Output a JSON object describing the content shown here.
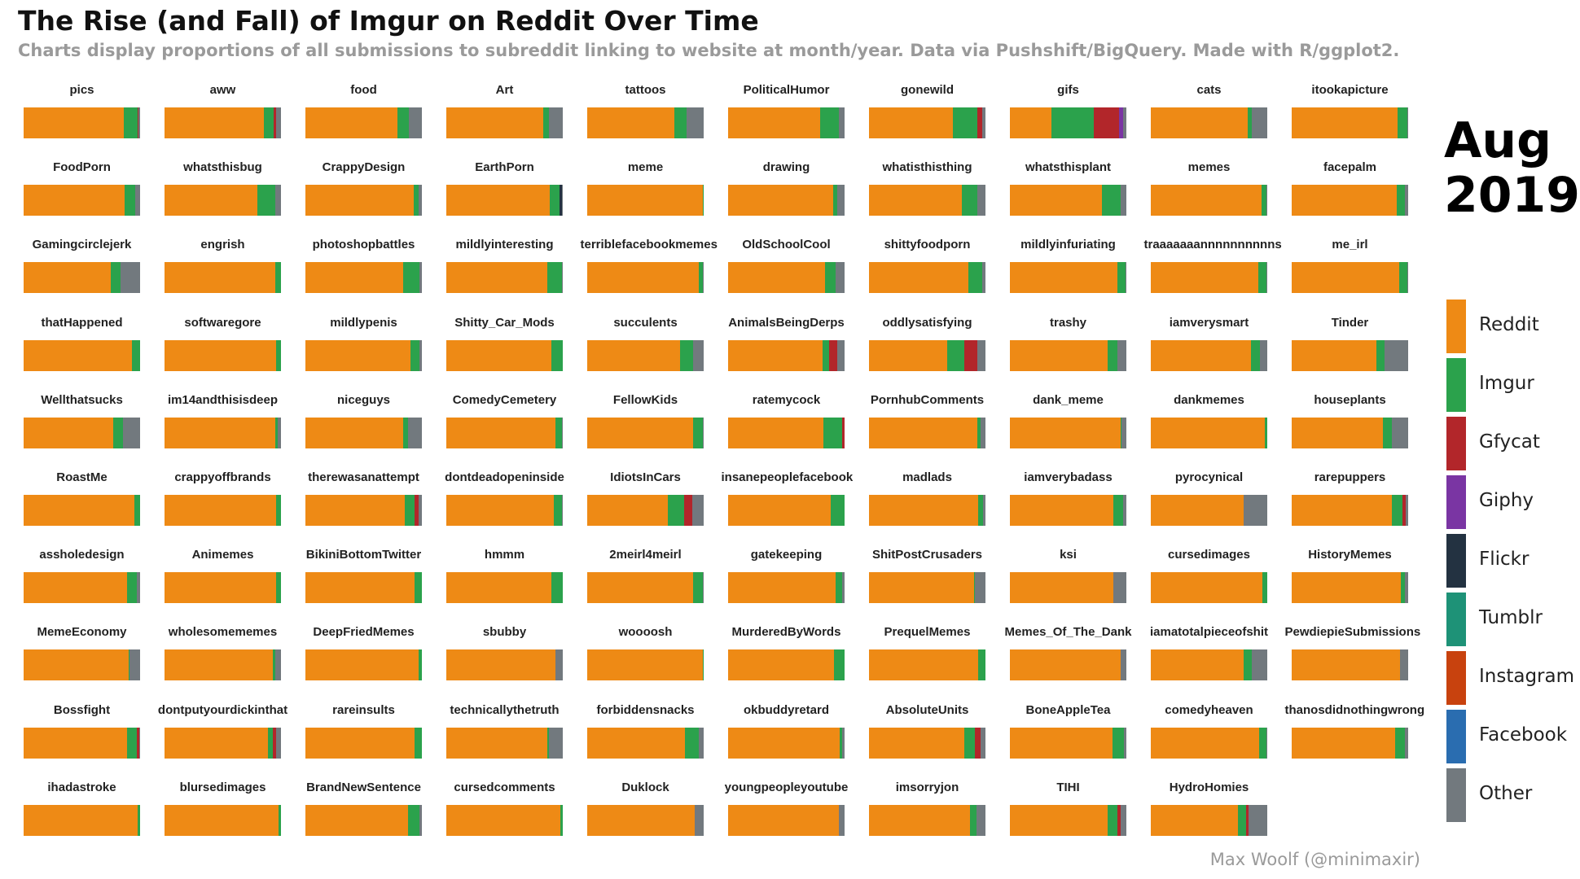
{
  "title": "The Rise (and Fall) of Imgur on Reddit Over Time",
  "subtitle": "Charts display proportions of all submissions to subreddit linking to website at month/year. Data via Pushshift/BigQuery. Made with R/ggplot2.",
  "date": {
    "month": "Aug",
    "year": "2019"
  },
  "caption": "Max Woolf (@minimaxir)",
  "colors": {
    "Reddit": "#EE8A15",
    "Imgur": "#2BA24C",
    "Gfycat": "#B2262A",
    "Giphy": "#7A35A3",
    "Flickr": "#233241",
    "Tumblr": "#1E9277",
    "Instagram": "#C8420E",
    "Facebook": "#2A6DB0",
    "Other": "#72797E"
  },
  "legend": [
    "Reddit",
    "Imgur",
    "Gfycat",
    "Giphy",
    "Flickr",
    "Tumblr",
    "Instagram",
    "Facebook",
    "Other"
  ],
  "chart_data": {
    "type": "bar",
    "stacked": true,
    "orientation": "horizontal",
    "value_units": "proportion of submissions",
    "series_order": [
      "Reddit",
      "Imgur",
      "Gfycat",
      "Giphy",
      "Flickr",
      "Tumblr",
      "Instagram",
      "Facebook",
      "Other"
    ],
    "facets": [
      {
        "name": "pics",
        "values": {
          "Reddit": 0.86,
          "Imgur": 0.12,
          "Gfycat": 0.005,
          "Other": 0.015
        }
      },
      {
        "name": "aww",
        "values": {
          "Reddit": 0.85,
          "Imgur": 0.09,
          "Gfycat": 0.02,
          "Other": 0.04
        }
      },
      {
        "name": "food",
        "values": {
          "Reddit": 0.79,
          "Imgur": 0.1,
          "Other": 0.11
        }
      },
      {
        "name": "Art",
        "values": {
          "Reddit": 0.83,
          "Imgur": 0.05,
          "Other": 0.12
        }
      },
      {
        "name": "tattoos",
        "values": {
          "Reddit": 0.75,
          "Imgur": 0.1,
          "Other": 0.15
        }
      },
      {
        "name": "PoliticalHumor",
        "values": {
          "Reddit": 0.79,
          "Imgur": 0.16,
          "Other": 0.05
        }
      },
      {
        "name": "gonewild",
        "values": {
          "Reddit": 0.72,
          "Imgur": 0.21,
          "Gfycat": 0.04,
          "Other": 0.03
        }
      },
      {
        "name": "gifs",
        "values": {
          "Reddit": 0.36,
          "Imgur": 0.36,
          "Gfycat": 0.22,
          "Giphy": 0.03,
          "Other": 0.03
        }
      },
      {
        "name": "cats",
        "values": {
          "Reddit": 0.83,
          "Imgur": 0.04,
          "Other": 0.13
        }
      },
      {
        "name": "itookapicture",
        "values": {
          "Reddit": 0.91,
          "Imgur": 0.08,
          "Other": 0.01
        }
      },
      {
        "name": "FoodPorn",
        "values": {
          "Reddit": 0.87,
          "Imgur": 0.09,
          "Other": 0.04
        }
      },
      {
        "name": "whatsthisbug",
        "values": {
          "Reddit": 0.8,
          "Imgur": 0.15,
          "Other": 0.05
        }
      },
      {
        "name": "CrappyDesign",
        "values": {
          "Reddit": 0.93,
          "Imgur": 0.04,
          "Other": 0.03
        }
      },
      {
        "name": "EarthPorn",
        "values": {
          "Reddit": 0.89,
          "Imgur": 0.08,
          "Flickr": 0.02,
          "Other": 0.01
        }
      },
      {
        "name": "meme",
        "values": {
          "Reddit": 0.99,
          "Imgur": 0.01
        }
      },
      {
        "name": "drawing",
        "values": {
          "Reddit": 0.9,
          "Imgur": 0.04,
          "Other": 0.06
        }
      },
      {
        "name": "whatisthisthing",
        "values": {
          "Reddit": 0.8,
          "Imgur": 0.13,
          "Other": 0.07
        }
      },
      {
        "name": "whatsthisplant",
        "values": {
          "Reddit": 0.79,
          "Imgur": 0.16,
          "Other": 0.05
        }
      },
      {
        "name": "memes",
        "values": {
          "Reddit": 0.95,
          "Imgur": 0.04,
          "Other": 0.01
        }
      },
      {
        "name": "facepalm",
        "values": {
          "Reddit": 0.9,
          "Imgur": 0.07,
          "Other": 0.03
        }
      },
      {
        "name": "Gamingcirclejerk",
        "values": {
          "Reddit": 0.75,
          "Imgur": 0.08,
          "Other": 0.17
        }
      },
      {
        "name": "engrish",
        "values": {
          "Reddit": 0.95,
          "Imgur": 0.05
        }
      },
      {
        "name": "photoshopbattles",
        "values": {
          "Reddit": 0.84,
          "Imgur": 0.14,
          "Other": 0.02
        }
      },
      {
        "name": "mildlyinteresting",
        "values": {
          "Reddit": 0.87,
          "Imgur": 0.12,
          "Other": 0.01
        }
      },
      {
        "name": "terriblefacebookmemes",
        "values": {
          "Reddit": 0.96,
          "Imgur": 0.03,
          "Other": 0.01
        }
      },
      {
        "name": "OldSchoolCool",
        "values": {
          "Reddit": 0.83,
          "Imgur": 0.09,
          "Other": 0.08
        }
      },
      {
        "name": "shittyfoodporn",
        "values": {
          "Reddit": 0.85,
          "Imgur": 0.12,
          "Other": 0.03
        }
      },
      {
        "name": "mildlyinfuriating",
        "values": {
          "Reddit": 0.92,
          "Imgur": 0.07,
          "Other": 0.01
        }
      },
      {
        "name": "traaaaaaannnnnnnnnns",
        "values": {
          "Reddit": 0.92,
          "Imgur": 0.07,
          "Other": 0.01
        }
      },
      {
        "name": "me_irl",
        "values": {
          "Reddit": 0.92,
          "Imgur": 0.07,
          "Other": 0.01
        }
      },
      {
        "name": "thatHappened",
        "values": {
          "Reddit": 0.93,
          "Imgur": 0.07
        }
      },
      {
        "name": "softwaregore",
        "values": {
          "Reddit": 0.96,
          "Imgur": 0.04
        }
      },
      {
        "name": "mildlypenis",
        "values": {
          "Reddit": 0.9,
          "Imgur": 0.08,
          "Other": 0.02
        }
      },
      {
        "name": "Shitty_Car_Mods",
        "values": {
          "Reddit": 0.9,
          "Imgur": 0.1
        }
      },
      {
        "name": "succulents",
        "values": {
          "Reddit": 0.8,
          "Imgur": 0.11,
          "Other": 0.09
        }
      },
      {
        "name": "AnimalsBeingDerps",
        "values": {
          "Reddit": 0.81,
          "Imgur": 0.06,
          "Gfycat": 0.07,
          "Other": 0.06
        }
      },
      {
        "name": "oddlysatisfying",
        "values": {
          "Reddit": 0.67,
          "Imgur": 0.15,
          "Gfycat": 0.11,
          "Other": 0.07
        }
      },
      {
        "name": "trashy",
        "values": {
          "Reddit": 0.84,
          "Imgur": 0.08,
          "Other": 0.08
        }
      },
      {
        "name": "iamverysmart",
        "values": {
          "Reddit": 0.86,
          "Imgur": 0.08,
          "Other": 0.06
        }
      },
      {
        "name": "Tinder",
        "values": {
          "Reddit": 0.73,
          "Imgur": 0.07,
          "Other": 0.2
        }
      },
      {
        "name": "Wellthatsucks",
        "values": {
          "Reddit": 0.77,
          "Imgur": 0.08,
          "Other": 0.15
        }
      },
      {
        "name": "im14andthisisdeep",
        "values": {
          "Reddit": 0.95,
          "Imgur": 0.02,
          "Other": 0.03
        }
      },
      {
        "name": "niceguys",
        "values": {
          "Reddit": 0.84,
          "Imgur": 0.04,
          "Other": 0.12
        }
      },
      {
        "name": "ComedyCemetery",
        "values": {
          "Reddit": 0.94,
          "Imgur": 0.05,
          "Other": 0.01
        }
      },
      {
        "name": "FellowKids",
        "values": {
          "Reddit": 0.91,
          "Imgur": 0.08,
          "Other": 0.01
        }
      },
      {
        "name": "ratemycock",
        "values": {
          "Reddit": 0.82,
          "Imgur": 0.16,
          "Gfycat": 0.02
        }
      },
      {
        "name": "PornhubComments",
        "values": {
          "Reddit": 0.93,
          "Imgur": 0.03,
          "Other": 0.04
        }
      },
      {
        "name": "dank_meme",
        "values": {
          "Reddit": 0.95,
          "Imgur": 0.01,
          "Other": 0.04
        }
      },
      {
        "name": "dankmemes",
        "values": {
          "Reddit": 0.98,
          "Imgur": 0.02
        }
      },
      {
        "name": "houseplants",
        "values": {
          "Reddit": 0.78,
          "Imgur": 0.08,
          "Other": 0.14
        }
      },
      {
        "name": "RoastMe",
        "values": {
          "Reddit": 0.95,
          "Imgur": 0.05
        }
      },
      {
        "name": "crappyoffbrands",
        "values": {
          "Reddit": 0.96,
          "Imgur": 0.04
        }
      },
      {
        "name": "therewasanattempt",
        "values": {
          "Reddit": 0.85,
          "Imgur": 0.09,
          "Gfycat": 0.03,
          "Other": 0.03
        }
      },
      {
        "name": "dontdeadopeninside",
        "values": {
          "Reddit": 0.92,
          "Imgur": 0.07,
          "Other": 0.01
        }
      },
      {
        "name": "IdiotsInCars",
        "values": {
          "Reddit": 0.69,
          "Imgur": 0.14,
          "Gfycat": 0.07,
          "Other": 0.1
        }
      },
      {
        "name": "insanepeoplefacebook",
        "values": {
          "Reddit": 0.88,
          "Imgur": 0.12
        }
      },
      {
        "name": "madlads",
        "values": {
          "Reddit": 0.94,
          "Imgur": 0.04,
          "Other": 0.02
        }
      },
      {
        "name": "iamverybadass",
        "values": {
          "Reddit": 0.89,
          "Imgur": 0.08,
          "Other": 0.03
        }
      },
      {
        "name": "pyrocynical",
        "values": {
          "Reddit": 0.8,
          "Other": 0.2
        }
      },
      {
        "name": "rarepuppers",
        "values": {
          "Reddit": 0.86,
          "Imgur": 0.09,
          "Gfycat": 0.03,
          "Other": 0.02
        }
      },
      {
        "name": "assholedesign",
        "values": {
          "Reddit": 0.89,
          "Imgur": 0.08,
          "Other": 0.03
        }
      },
      {
        "name": "Animemes",
        "values": {
          "Reddit": 0.96,
          "Imgur": 0.04
        }
      },
      {
        "name": "BikiniBottomTwitter",
        "values": {
          "Reddit": 0.94,
          "Imgur": 0.06
        }
      },
      {
        "name": "hmmm",
        "values": {
          "Reddit": 0.9,
          "Imgur": 0.1
        }
      },
      {
        "name": "2meirl4meirl",
        "values": {
          "Reddit": 0.91,
          "Imgur": 0.08,
          "Other": 0.01
        }
      },
      {
        "name": "gatekeeping",
        "values": {
          "Reddit": 0.92,
          "Imgur": 0.06,
          "Other": 0.02
        }
      },
      {
        "name": "ShitPostCrusaders",
        "values": {
          "Reddit": 0.9,
          "Imgur": 0.01,
          "Other": 0.09
        }
      },
      {
        "name": "ksi",
        "values": {
          "Reddit": 0.89,
          "Other": 0.11
        }
      },
      {
        "name": "cursedimages",
        "values": {
          "Reddit": 0.96,
          "Imgur": 0.04
        }
      },
      {
        "name": "HistoryMemes",
        "values": {
          "Reddit": 0.94,
          "Imgur": 0.03,
          "Other": 0.03
        }
      },
      {
        "name": "MemeEconomy",
        "values": {
          "Reddit": 0.9,
          "Imgur": 0.01,
          "Other": 0.09
        }
      },
      {
        "name": "wholesomememes",
        "values": {
          "Reddit": 0.93,
          "Imgur": 0.02,
          "Other": 0.05
        }
      },
      {
        "name": "DeepFriedMemes",
        "values": {
          "Reddit": 0.97,
          "Imgur": 0.03
        }
      },
      {
        "name": "sbubby",
        "values": {
          "Reddit": 0.94,
          "Other": 0.06
        }
      },
      {
        "name": "woooosh",
        "values": {
          "Reddit": 0.99,
          "Imgur": 0.01
        }
      },
      {
        "name": "MurderedByWords",
        "values": {
          "Reddit": 0.91,
          "Imgur": 0.09
        }
      },
      {
        "name": "PrequelMemes",
        "values": {
          "Reddit": 0.94,
          "Imgur": 0.06
        }
      },
      {
        "name": "Memes_Of_The_Dank",
        "values": {
          "Reddit": 0.95,
          "Other": 0.05
        }
      },
      {
        "name": "iamatotalpieceofshit",
        "values": {
          "Reddit": 0.8,
          "Imgur": 0.07,
          "Other": 0.13
        }
      },
      {
        "name": "PewdiepieSubmissions",
        "values": {
          "Reddit": 0.93,
          "Other": 0.07
        }
      },
      {
        "name": "Bossfight",
        "values": {
          "Reddit": 0.89,
          "Imgur": 0.08,
          "Gfycat": 0.02,
          "Other": 0.01
        }
      },
      {
        "name": "dontputyourdickinthat",
        "values": {
          "Reddit": 0.89,
          "Imgur": 0.04,
          "Gfycat": 0.03,
          "Other": 0.04
        }
      },
      {
        "name": "rareinsults",
        "values": {
          "Reddit": 0.94,
          "Imgur": 0.06
        }
      },
      {
        "name": "technicallythetruth",
        "values": {
          "Reddit": 0.87,
          "Imgur": 0.01,
          "Other": 0.12
        }
      },
      {
        "name": "forbiddensnacks",
        "values": {
          "Reddit": 0.84,
          "Imgur": 0.12,
          "Other": 0.04
        }
      },
      {
        "name": "okbuddyretard",
        "values": {
          "Reddit": 0.96,
          "Imgur": 0.02,
          "Other": 0.02
        }
      },
      {
        "name": "AbsoluteUnits",
        "values": {
          "Reddit": 0.82,
          "Imgur": 0.09,
          "Gfycat": 0.05,
          "Other": 0.04
        }
      },
      {
        "name": "BoneAppleTea",
        "values": {
          "Reddit": 0.88,
          "Imgur": 0.1,
          "Other": 0.02
        }
      },
      {
        "name": "comedyheaven",
        "values": {
          "Reddit": 0.93,
          "Imgur": 0.06,
          "Other": 0.01
        }
      },
      {
        "name": "thanosdidnothingwrong",
        "values": {
          "Reddit": 0.89,
          "Imgur": 0.08,
          "Other": 0.03
        }
      },
      {
        "name": "ihadastroke",
        "values": {
          "Reddit": 0.98,
          "Imgur": 0.02
        }
      },
      {
        "name": "blursedimages",
        "values": {
          "Reddit": 0.98,
          "Imgur": 0.02
        }
      },
      {
        "name": "BrandNewSentence",
        "values": {
          "Reddit": 0.88,
          "Imgur": 0.1,
          "Other": 0.02
        }
      },
      {
        "name": "cursedcomments",
        "values": {
          "Reddit": 0.98,
          "Imgur": 0.02
        }
      },
      {
        "name": "Duklock",
        "values": {
          "Reddit": 0.92,
          "Other": 0.08
        }
      },
      {
        "name": "youngpeopleyoutube",
        "values": {
          "Reddit": 0.95,
          "Other": 0.05
        }
      },
      {
        "name": "imsorryjon",
        "values": {
          "Reddit": 0.87,
          "Imgur": 0.05,
          "Other": 0.08
        }
      },
      {
        "name": "TIHI",
        "values": {
          "Reddit": 0.84,
          "Imgur": 0.08,
          "Gfycat": 0.03,
          "Other": 0.05
        }
      },
      {
        "name": "HydroHomies",
        "values": {
          "Reddit": 0.75,
          "Imgur": 0.07,
          "Gfycat": 0.02,
          "Other": 0.16
        }
      }
    ]
  }
}
